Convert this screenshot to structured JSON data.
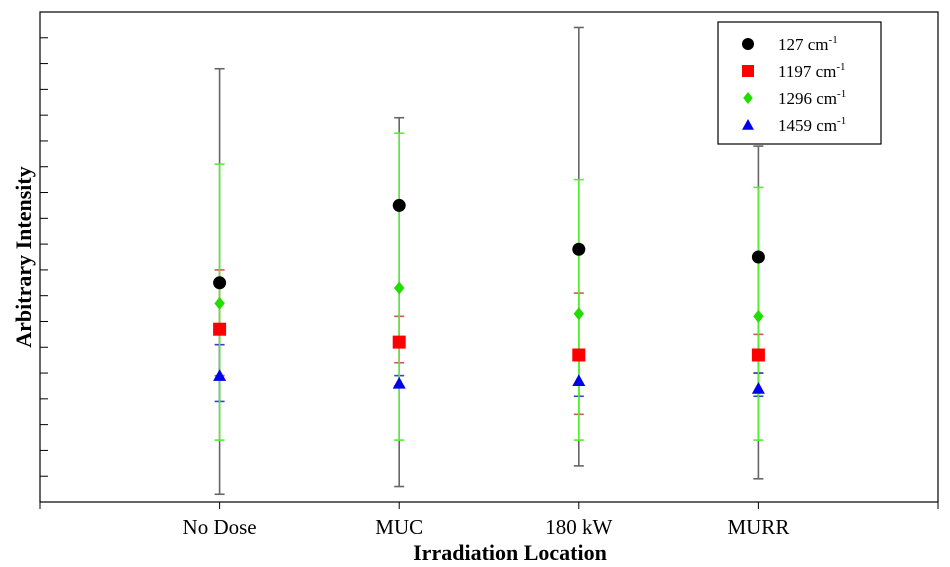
{
  "chart_data": {
    "type": "scatter",
    "title": "",
    "xlabel": "Irradiation Location",
    "ylabel": "Arbitrary Intensity",
    "categories": [
      "No Dose",
      "MUC",
      "180 kW",
      "MURR"
    ],
    "x_range": [
      -1,
      4
    ],
    "ylim": [
      0,
      19
    ],
    "y_ticks_labeled": false,
    "grid": false,
    "legend_position": "top-right",
    "series": [
      {
        "name": "127 cm",
        "superscript": "-1",
        "marker": "circle",
        "color": "#000000",
        "error_color": "#666666",
        "values": [
          8.5,
          11.5,
          9.8,
          9.5
        ],
        "err_low": [
          0.3,
          0.6,
          1.4,
          0.9
        ],
        "err_high": [
          16.8,
          14.9,
          18.4,
          13.8
        ]
      },
      {
        "name": "1197 cm",
        "superscript": "-1",
        "marker": "square",
        "color": "#ff0000",
        "error_color": "#d9534f",
        "values": [
          6.7,
          6.2,
          5.7,
          5.7
        ],
        "err_low": [
          4.9,
          5.4,
          3.4,
          5.0
        ],
        "err_high": [
          9.0,
          7.2,
          8.1,
          6.5
        ]
      },
      {
        "name": "1296 cm",
        "superscript": "-1",
        "marker": "diamond",
        "color": "#22dd00",
        "error_color": "#55ee33",
        "values": [
          7.7,
          8.3,
          7.3,
          7.2
        ],
        "err_low": [
          2.4,
          2.4,
          2.4,
          2.4
        ],
        "err_high": [
          13.1,
          14.3,
          12.5,
          12.2
        ]
      },
      {
        "name": "1459 cm",
        "superscript": "-1",
        "marker": "triangle",
        "color": "#0000ee",
        "error_color": "#3344cc",
        "values": [
          4.9,
          4.6,
          4.7,
          4.4
        ],
        "err_low": [
          3.9,
          4.5,
          4.1,
          4.1
        ],
        "err_high": [
          6.1,
          4.9,
          5.6,
          5.0
        ]
      }
    ]
  }
}
